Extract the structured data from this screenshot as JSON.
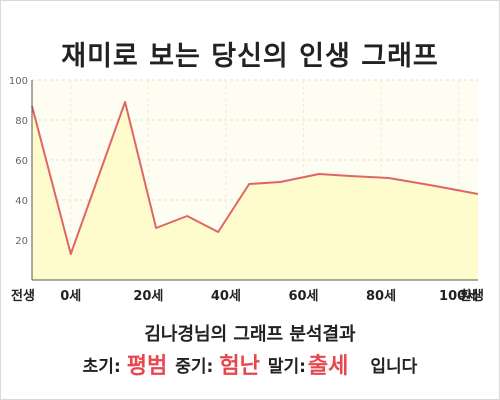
{
  "header": {
    "title": "재미로 보는 당신의 인생 그래프"
  },
  "summary": {
    "subtitle": "김나경님의 그래프 분석결과",
    "early_label": "초기:",
    "early_value": "평범",
    "middle_label": "중기:",
    "middle_value": "험난",
    "late_label": "말기:",
    "late_value": "출세",
    "ending": "입니다",
    "accent_color": "#e8474e"
  },
  "chart_data": {
    "type": "area",
    "title": "",
    "xlabel": "",
    "ylabel": "",
    "ylim": [
      0,
      100
    ],
    "xlim": [
      -10,
      105
    ],
    "grid": true,
    "legend": "none",
    "line_color": "#e06666",
    "fill_color": "#fefbcd",
    "x": [
      -10,
      0,
      14,
      22,
      30,
      38,
      46,
      54,
      64,
      72,
      82,
      94,
      105
    ],
    "values": [
      87,
      13,
      89,
      26,
      32,
      24,
      48,
      49,
      53,
      52,
      51,
      47,
      43
    ],
    "y_ticks": [
      20,
      40,
      60,
      80,
      100
    ],
    "x_ticks": [
      {
        "value": -10,
        "label": "전생"
      },
      {
        "value": 0,
        "label": "0세"
      },
      {
        "value": 20,
        "label": "20세"
      },
      {
        "value": 40,
        "label": "40세"
      },
      {
        "value": 60,
        "label": "60세"
      },
      {
        "value": 80,
        "label": "80세"
      },
      {
        "value": 100,
        "label": "100세"
      },
      {
        "value": 105,
        "label": "환생"
      }
    ]
  }
}
